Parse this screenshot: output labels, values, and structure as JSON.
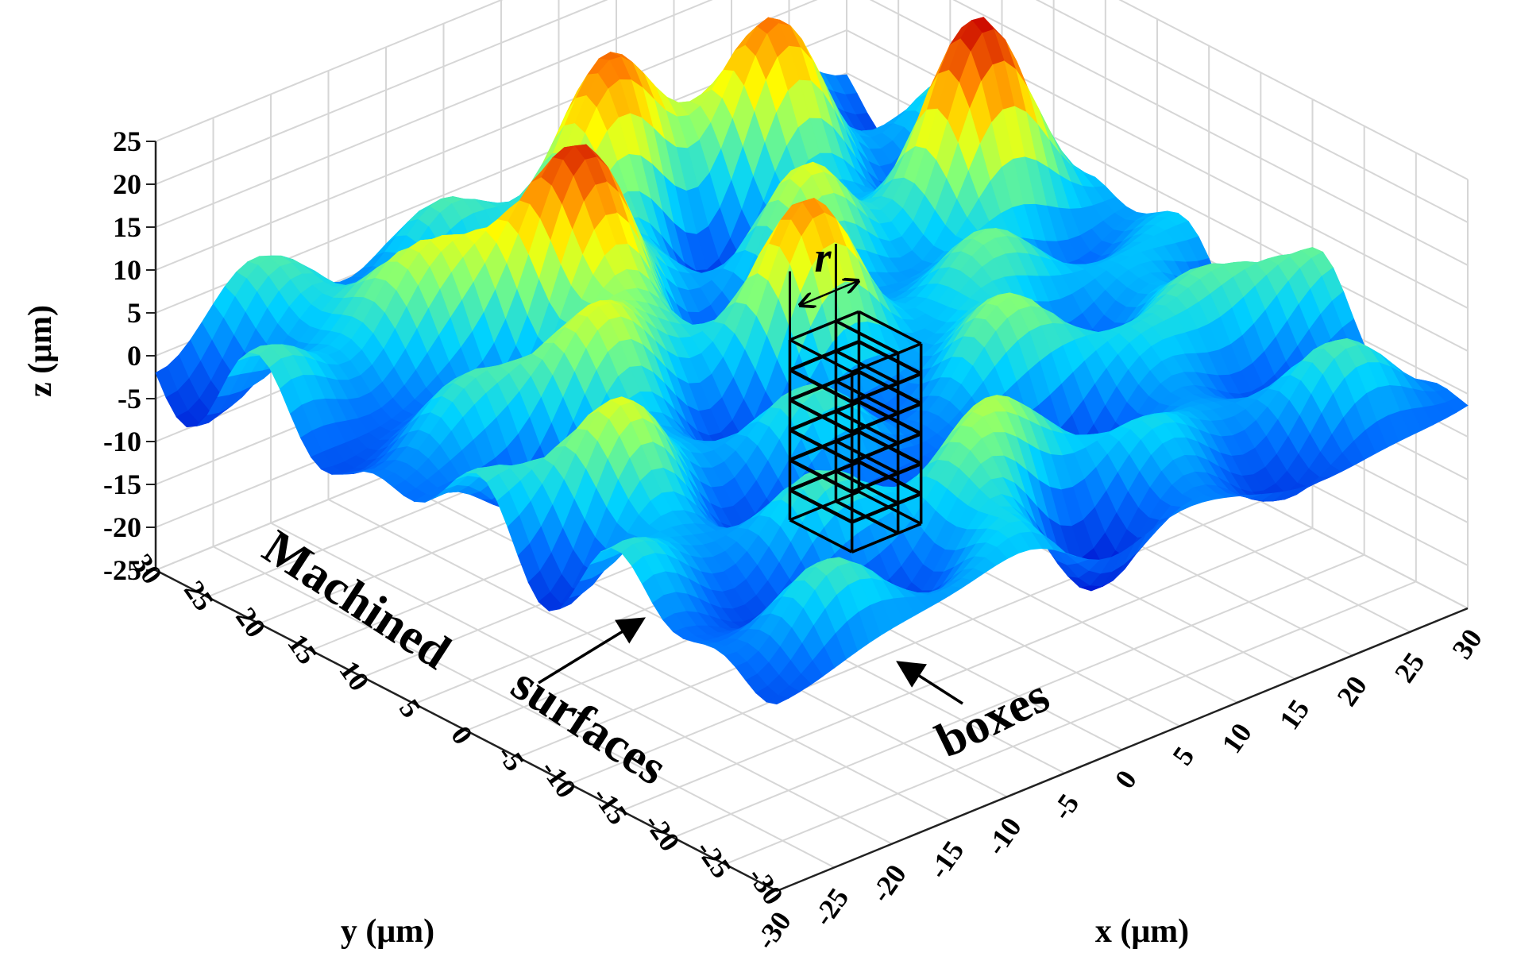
{
  "chart_data": {
    "type": "surface",
    "title": "",
    "xlabel": "x (μm)",
    "ylabel": "y (μm)",
    "zlabel": "z (μm)",
    "xlim": [
      -30,
      30
    ],
    "ylim": [
      -30,
      30
    ],
    "zlim": [
      -25,
      25
    ],
    "x_ticks": [
      "-30",
      "-25",
      "-20",
      "-15",
      "-10",
      "-5",
      "0",
      "5",
      "10",
      "15",
      "20",
      "25",
      "30"
    ],
    "y_ticks": [
      "-30",
      "-25",
      "-20",
      "-15",
      "-10",
      "-5",
      "0",
      "5",
      "10",
      "15",
      "20",
      "25",
      "30"
    ],
    "z_ticks": [
      "-25",
      "-20",
      "-15",
      "-10",
      "-5",
      "0",
      "5",
      "10",
      "15",
      "20",
      "25"
    ],
    "grid": true,
    "colormap": "jet",
    "colors": {
      "low": "#0010d0",
      "mid_low": "#00c8ff",
      "mid": "#ffff00",
      "mid_high": "#ff8000",
      "high": "#c80000",
      "grid": "#d6d6d6",
      "box": "#000000"
    },
    "surface_peaks": [
      {
        "x": 2,
        "y": 2,
        "z": 12
      },
      {
        "x": -8,
        "y": 14,
        "z": 20
      },
      {
        "x": 4,
        "y": 24,
        "z": 17
      },
      {
        "x": 16,
        "y": 22,
        "z": 14
      },
      {
        "x": 22,
        "y": 8,
        "z": 18
      },
      {
        "x": -18,
        "y": 22,
        "z": 10
      },
      {
        "x": -14,
        "y": 6,
        "z": 9
      },
      {
        "x": 10,
        "y": 10,
        "z": 8
      },
      {
        "x": -4,
        "y": -22,
        "z": 10
      },
      {
        "x": 12,
        "y": -6,
        "z": 8
      },
      {
        "x": -22,
        "y": -6,
        "z": 8
      },
      {
        "x": 24,
        "y": -14,
        "z": 6
      }
    ],
    "annotations": [
      {
        "id": "surfaces",
        "text_line1": "Machined",
        "text_line2": "surfaces"
      },
      {
        "id": "boxes",
        "text": "boxes"
      },
      {
        "id": "box-size",
        "text": "r"
      }
    ]
  }
}
